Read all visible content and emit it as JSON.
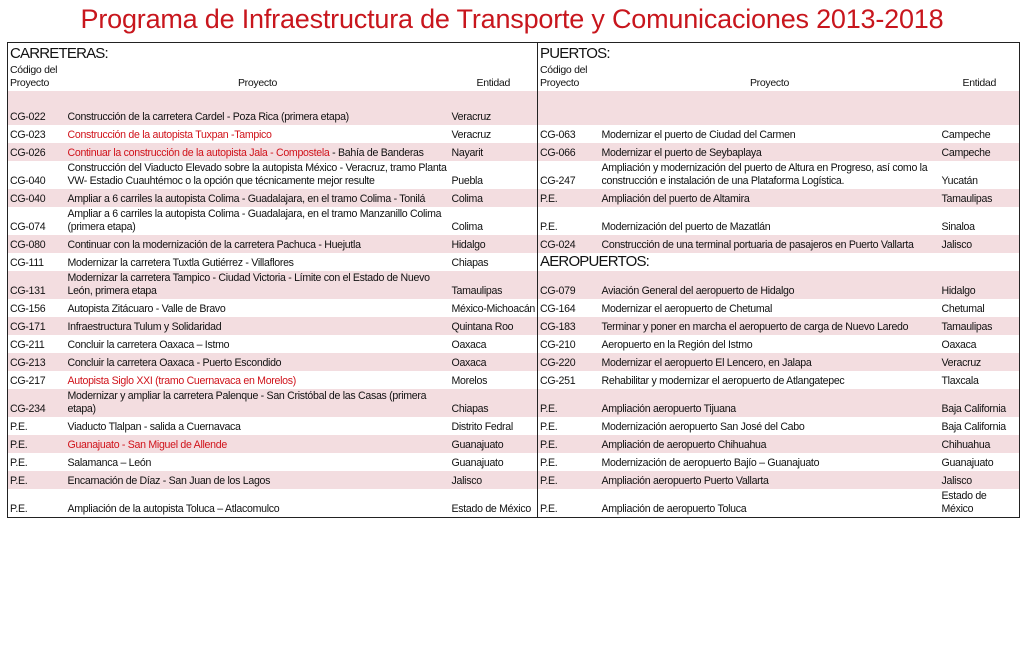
{
  "title": "Programa de Infraestructura de Transporte y Comunicaciones 2013-2018",
  "left": {
    "section": "CARRETERAS:",
    "headers": [
      "Código del Proyecto",
      "Proyecto",
      "Entidad"
    ]
  },
  "right": {
    "section": "PUERTOS:",
    "headers": [
      "Código del Proyecto",
      "Proyecto",
      "Entidad"
    ]
  },
  "rows": [
    {
      "left": {
        "code": "CG-022",
        "project": "Construcción de la carretera Cardel - Poza Rica (primera etapa)",
        "entity": "Veracruz"
      }
    },
    {
      "left": {
        "code": "CG-023",
        "project_red": "Construcción de la autopista Tuxpan -Tampico",
        "entity": "Veracruz"
      },
      "right": {
        "code": "CG-063",
        "project": "Modernizar el puerto de Ciudad del Carmen",
        "entity": "Campeche"
      }
    },
    {
      "left": {
        "code": "CG-026",
        "project_red": "Continuar la construcción de la autopista Jala - Compostela",
        "project": "- Bahía de Banderas",
        "entity": "Nayarit"
      },
      "right": {
        "code": "CG-066",
        "project": "Modernizar el puerto de Seybaplaya",
        "entity": "Campeche"
      }
    },
    {
      "left": {
        "code": "CG-040",
        "project": "Construcción del Viaducto Elevado sobre la autopista México - Veracruz, tramo Planta VW- Estadio Cuauhtémoc o la opción que técnicamente mejor resulte",
        "entity": "Puebla"
      },
      "right": {
        "code": "CG-247",
        "project": "Ampliación y modernización del puerto de Altura en Progreso, así como la construcción e instalación de una Plataforma Logística.",
        "entity": "Yucatán"
      }
    },
    {
      "left": {
        "code": "CG-040",
        "project": "Ampliar a 6 carriles la autopista Colima - Guadalajara, en el tramo Colima - Tonilá",
        "entity": "Colima"
      },
      "right": {
        "code": "P.E.",
        "project": "Ampliación del puerto de Altamira",
        "entity": "Tamaulipas"
      }
    },
    {
      "left": {
        "code": "CG-074",
        "project": "Ampliar a 6 carriles la autopista Colima - Guadalajara, en el tramo Manzanillo Colima (primera etapa)",
        "entity": "Colima"
      },
      "right": {
        "code": "P.E.",
        "project": "Modernización del puerto de Mazatlán",
        "entity": "Sinaloa"
      }
    },
    {
      "left": {
        "code": "CG-080",
        "project": "Continuar con la modernización de la carretera Pachuca - Huejutla",
        "entity": "Hidalgo"
      },
      "right": {
        "code": "CG-024",
        "project": "Construcción de una terminal portuaria de pasajeros en Puerto Vallarta",
        "entity": "Jalisco"
      }
    },
    {
      "left": {
        "code": "CG-111",
        "project": "Modernizar la carretera Tuxtla Gutiérrez - Villaflores",
        "entity": "Chiapas"
      },
      "right_section": "AEROPUERTOS:"
    },
    {
      "left": {
        "code": "CG-131",
        "project": "Modernizar la carretera Tampico - Ciudad Victoria - Límite con el Estado de Nuevo León, primera etapa",
        "entity": "Tamaulipas"
      },
      "right": {
        "code": "CG-079",
        "project": "Aviación General del aeropuerto de Hidalgo",
        "entity": "Hidalgo"
      }
    },
    {
      "left": {
        "code": "CG-156",
        "project": "Autopista Zitácuaro - Valle de Bravo",
        "entity": "México-Michoacán"
      },
      "right": {
        "code": "CG-164",
        "project": "Modernizar el aeropuerto de Chetumal",
        "entity": "Chetumal"
      }
    },
    {
      "left": {
        "code": "CG-171",
        "project": "Infraestructura Tulum y Solidaridad",
        "entity": "Quintana Roo"
      },
      "right": {
        "code": "CG-183",
        "project": "Terminar y poner en marcha el aeropuerto de carga de Nuevo Laredo",
        "entity": "Tamaulipas"
      }
    },
    {
      "left": {
        "code": "CG-211",
        "project": "Concluir la carretera Oaxaca – Istmo",
        "entity": "Oaxaca"
      },
      "right": {
        "code": "CG-210",
        "project": "Aeropuerto en la Región del Istmo",
        "entity": "Oaxaca"
      }
    },
    {
      "left": {
        "code": "CG-213",
        "project": "Concluir la carretera Oaxaca - Puerto Escondido",
        "entity": "Oaxaca"
      },
      "right": {
        "code": "CG-220",
        "project": "Modernizar el aeropuerto El Lencero, en Jalapa",
        "entity": "Veracruz"
      }
    },
    {
      "left": {
        "code": "CG-217",
        "project_red": "Autopista Siglo XXI (tramo Cuernavaca en Morelos)",
        "entity": "Morelos"
      },
      "right": {
        "code": "CG-251",
        "project": "Rehabilitar y modernizar el aeropuerto de Atlangatepec",
        "entity": "Tlaxcala"
      }
    },
    {
      "left": {
        "code": "CG-234",
        "project": "Modernizar y ampliar la carretera Palenque - San Cristóbal de las Casas (primera etapa)",
        "entity": "Chiapas"
      },
      "right": {
        "code": "P.E.",
        "project": "Ampliación aeropuerto Tijuana",
        "entity": "Baja California"
      }
    },
    {
      "left": {
        "code": "P.E.",
        "project": "Viaducto Tlalpan - salida a Cuernavaca",
        "entity": "Distrito Fedral"
      },
      "right": {
        "code": "P.E.",
        "project": "Modernización aeropuerto San José del Cabo",
        "entity": "Baja California"
      }
    },
    {
      "left": {
        "code": "P.E.",
        "project_red": "Guanajuato - San Miguel de Allende",
        "entity": "Guanajuato"
      },
      "right": {
        "code": "P.E.",
        "project": "Ampliación de aeropuerto Chihuahua",
        "entity": "Chihuahua"
      }
    },
    {
      "left": {
        "code": "P.E.",
        "project": "Salamanca – León",
        "entity": "Guanajuato"
      },
      "right": {
        "code": "P.E.",
        "project": "Modernización de aeropuerto Bajío – Guanajuato",
        "entity": "Guanajuato"
      }
    },
    {
      "left": {
        "code": "P.E.",
        "project": "Encarnación de Díaz - San Juan de los Lagos",
        "entity": "Jalisco"
      },
      "right": {
        "code": "P.E.",
        "project": "Ampliación aeropuerto Puerto Vallarta",
        "entity": "Jalisco"
      }
    },
    {
      "left": {
        "code": "P.E.",
        "project": "Ampliación de la autopista Toluca – Atlacomulco",
        "entity": "Estado de México"
      },
      "right": {
        "code": "P.E.",
        "project": "Ampliación de aeropuerto Toluca",
        "entity": "Estado de México"
      }
    }
  ]
}
